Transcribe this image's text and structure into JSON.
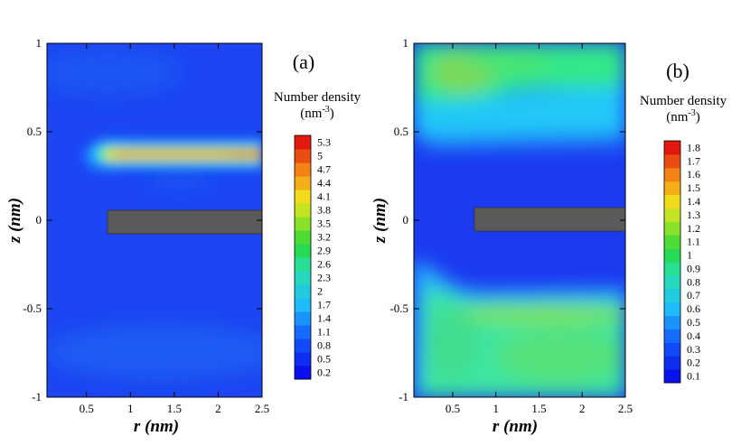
{
  "chart_data": [
    {
      "type": "heatmap",
      "panel_label": "(a)",
      "xlabel": "r (nm)",
      "ylabel": "z (nm)",
      "xlim": [
        0.05,
        2.5
      ],
      "ylim": [
        -1,
        1
      ],
      "x_ticks": [
        0.5,
        1,
        1.5,
        2,
        2.5
      ],
      "x_tick_labels": [
        "0.5",
        "1",
        "1.5",
        "2",
        "2.5"
      ],
      "y_ticks": [
        -1,
        -0.5,
        0,
        0.5,
        1
      ],
      "y_tick_labels": [
        "-1",
        "-0.5",
        "0",
        "0.5",
        "1"
      ],
      "colorbar": {
        "title": "Number density",
        "unit": "(nm",
        "unit_exp": "-3",
        "unit_close": ")",
        "min": 0.2,
        "max": 5.3,
        "levels": [
          "0.2",
          "0.5",
          "0.8",
          "1.1",
          "1.4",
          "1.7",
          "2",
          "2.3",
          "2.6",
          "2.9",
          "3.2",
          "3.5",
          "3.8",
          "4.1",
          "4.4",
          "4.7",
          "5",
          "5.3"
        ]
      },
      "obstacle": {
        "r": [
          0.75,
          2.5
        ],
        "z": [
          -0.07,
          0.07
        ],
        "color": "#5a5a5a"
      },
      "background_level": 0.5,
      "features": [
        {
          "r": [
            0.55,
            2.5
          ],
          "z": 0.37,
          "peak": 5.3,
          "description": "dense layer above the sheet"
        },
        {
          "r": [
            0.05,
            2.5
          ],
          "z": -0.75,
          "peak": 0.9,
          "description": "weak diffuse band below"
        }
      ]
    },
    {
      "type": "heatmap",
      "panel_label": "(b)",
      "xlabel": "r (nm)",
      "ylabel": "z (nm)",
      "xlim": [
        0.05,
        2.5
      ],
      "ylim": [
        -1,
        1
      ],
      "x_ticks": [
        0.5,
        1,
        1.5,
        2,
        2.5
      ],
      "x_tick_labels": [
        "0.5",
        "1",
        "1.5",
        "2",
        "2.5"
      ],
      "y_ticks": [
        -1,
        -0.5,
        0,
        0.5,
        1
      ],
      "y_tick_labels": [
        "-1",
        "-0.5",
        "0",
        "0.5",
        "1"
      ],
      "colorbar": {
        "title": "Number density",
        "unit": "(nm",
        "unit_exp": "-3",
        "unit_close": ")",
        "min": 0.1,
        "max": 1.8,
        "levels": [
          "0.1",
          "0.2",
          "0.3",
          "0.4",
          "0.5",
          "0.6",
          "0.7",
          "0.8",
          "0.9",
          "1",
          "1.1",
          "1.2",
          "1.3",
          "1.4",
          "1.5",
          "1.6",
          "1.7",
          "1.8"
        ]
      },
      "obstacle": {
        "r": [
          0.75,
          2.5
        ],
        "z": [
          -0.07,
          0.07
        ],
        "color": "#5a5a5a"
      },
      "background_level": 0.15,
      "features": [
        {
          "r": [
            0.05,
            2.5
          ],
          "z": [
            0.45,
            1.0
          ],
          "peak": 1.1,
          "description": "diffuse region above the sheet"
        },
        {
          "r": [
            0.05,
            2.5
          ],
          "z": [
            -1.0,
            -0.4
          ],
          "peak": 1.1,
          "description": "diffuse region below the sheet"
        }
      ]
    }
  ]
}
